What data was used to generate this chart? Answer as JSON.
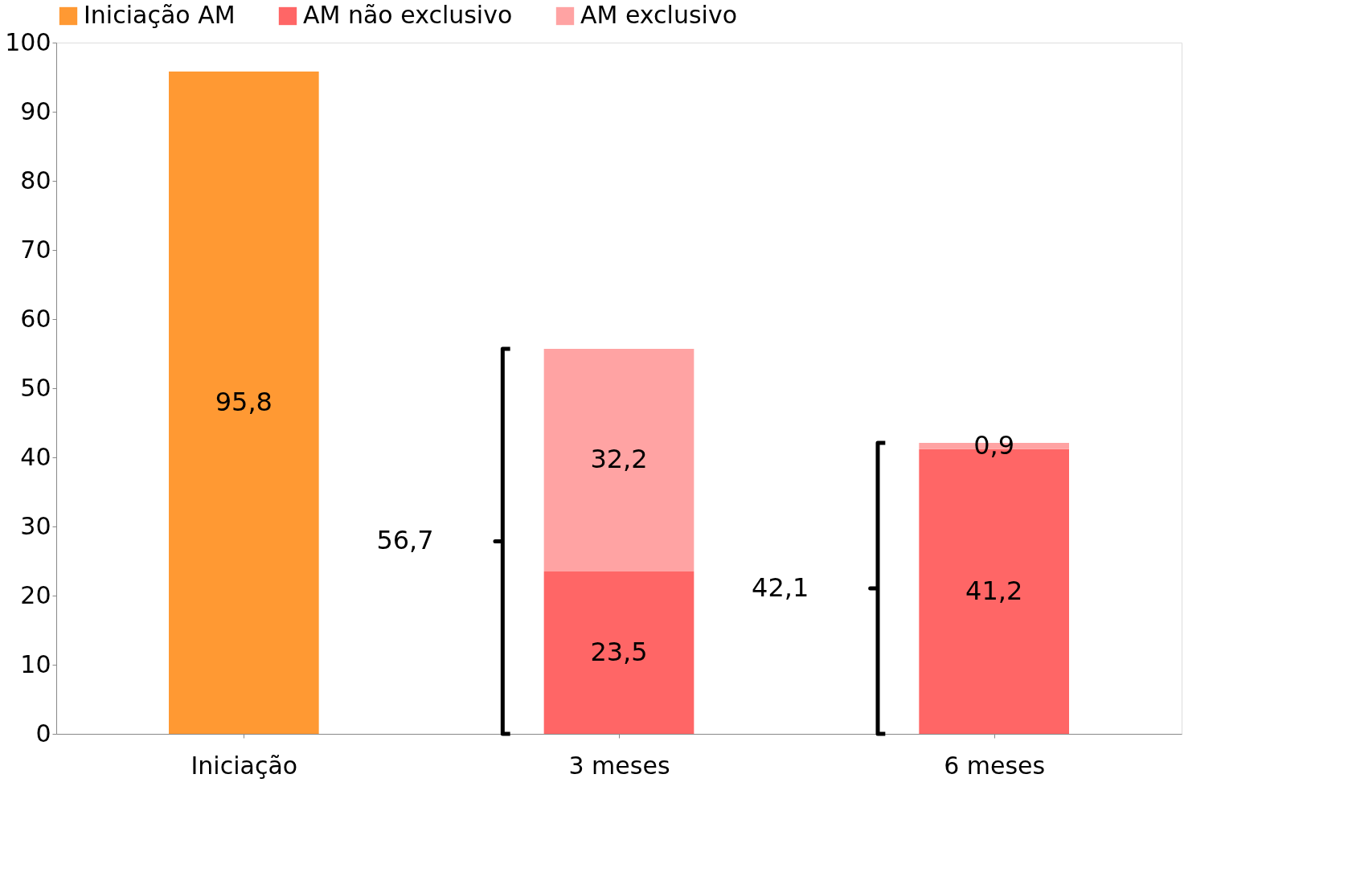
{
  "chart_data": {
    "type": "bar",
    "stacked": true,
    "categories": [
      "Iniciação",
      "3 meses",
      "6 meses"
    ],
    "series": [
      {
        "name": "Iniciação AM",
        "color": "#ff9933",
        "values": [
          95.8,
          null,
          null
        ],
        "value_labels": [
          "95,8",
          null,
          null
        ]
      },
      {
        "name": "AM não exclusivo",
        "color": "#ff6666",
        "values": [
          null,
          23.5,
          41.2
        ],
        "value_labels": [
          null,
          "23,5",
          "41,2"
        ]
      },
      {
        "name": "AM exclusivo",
        "color": "#ffa3a3",
        "values": [
          null,
          32.2,
          0.9
        ],
        "value_labels": [
          null,
          "32,2",
          "0,9"
        ]
      }
    ],
    "annotations": [
      "56,7",
      "42,1"
    ],
    "ylim": [
      0,
      100
    ],
    "yticks": [
      0,
      10,
      20,
      30,
      40,
      50,
      60,
      70,
      80,
      90,
      100
    ],
    "grid": false,
    "legend": "top"
  }
}
